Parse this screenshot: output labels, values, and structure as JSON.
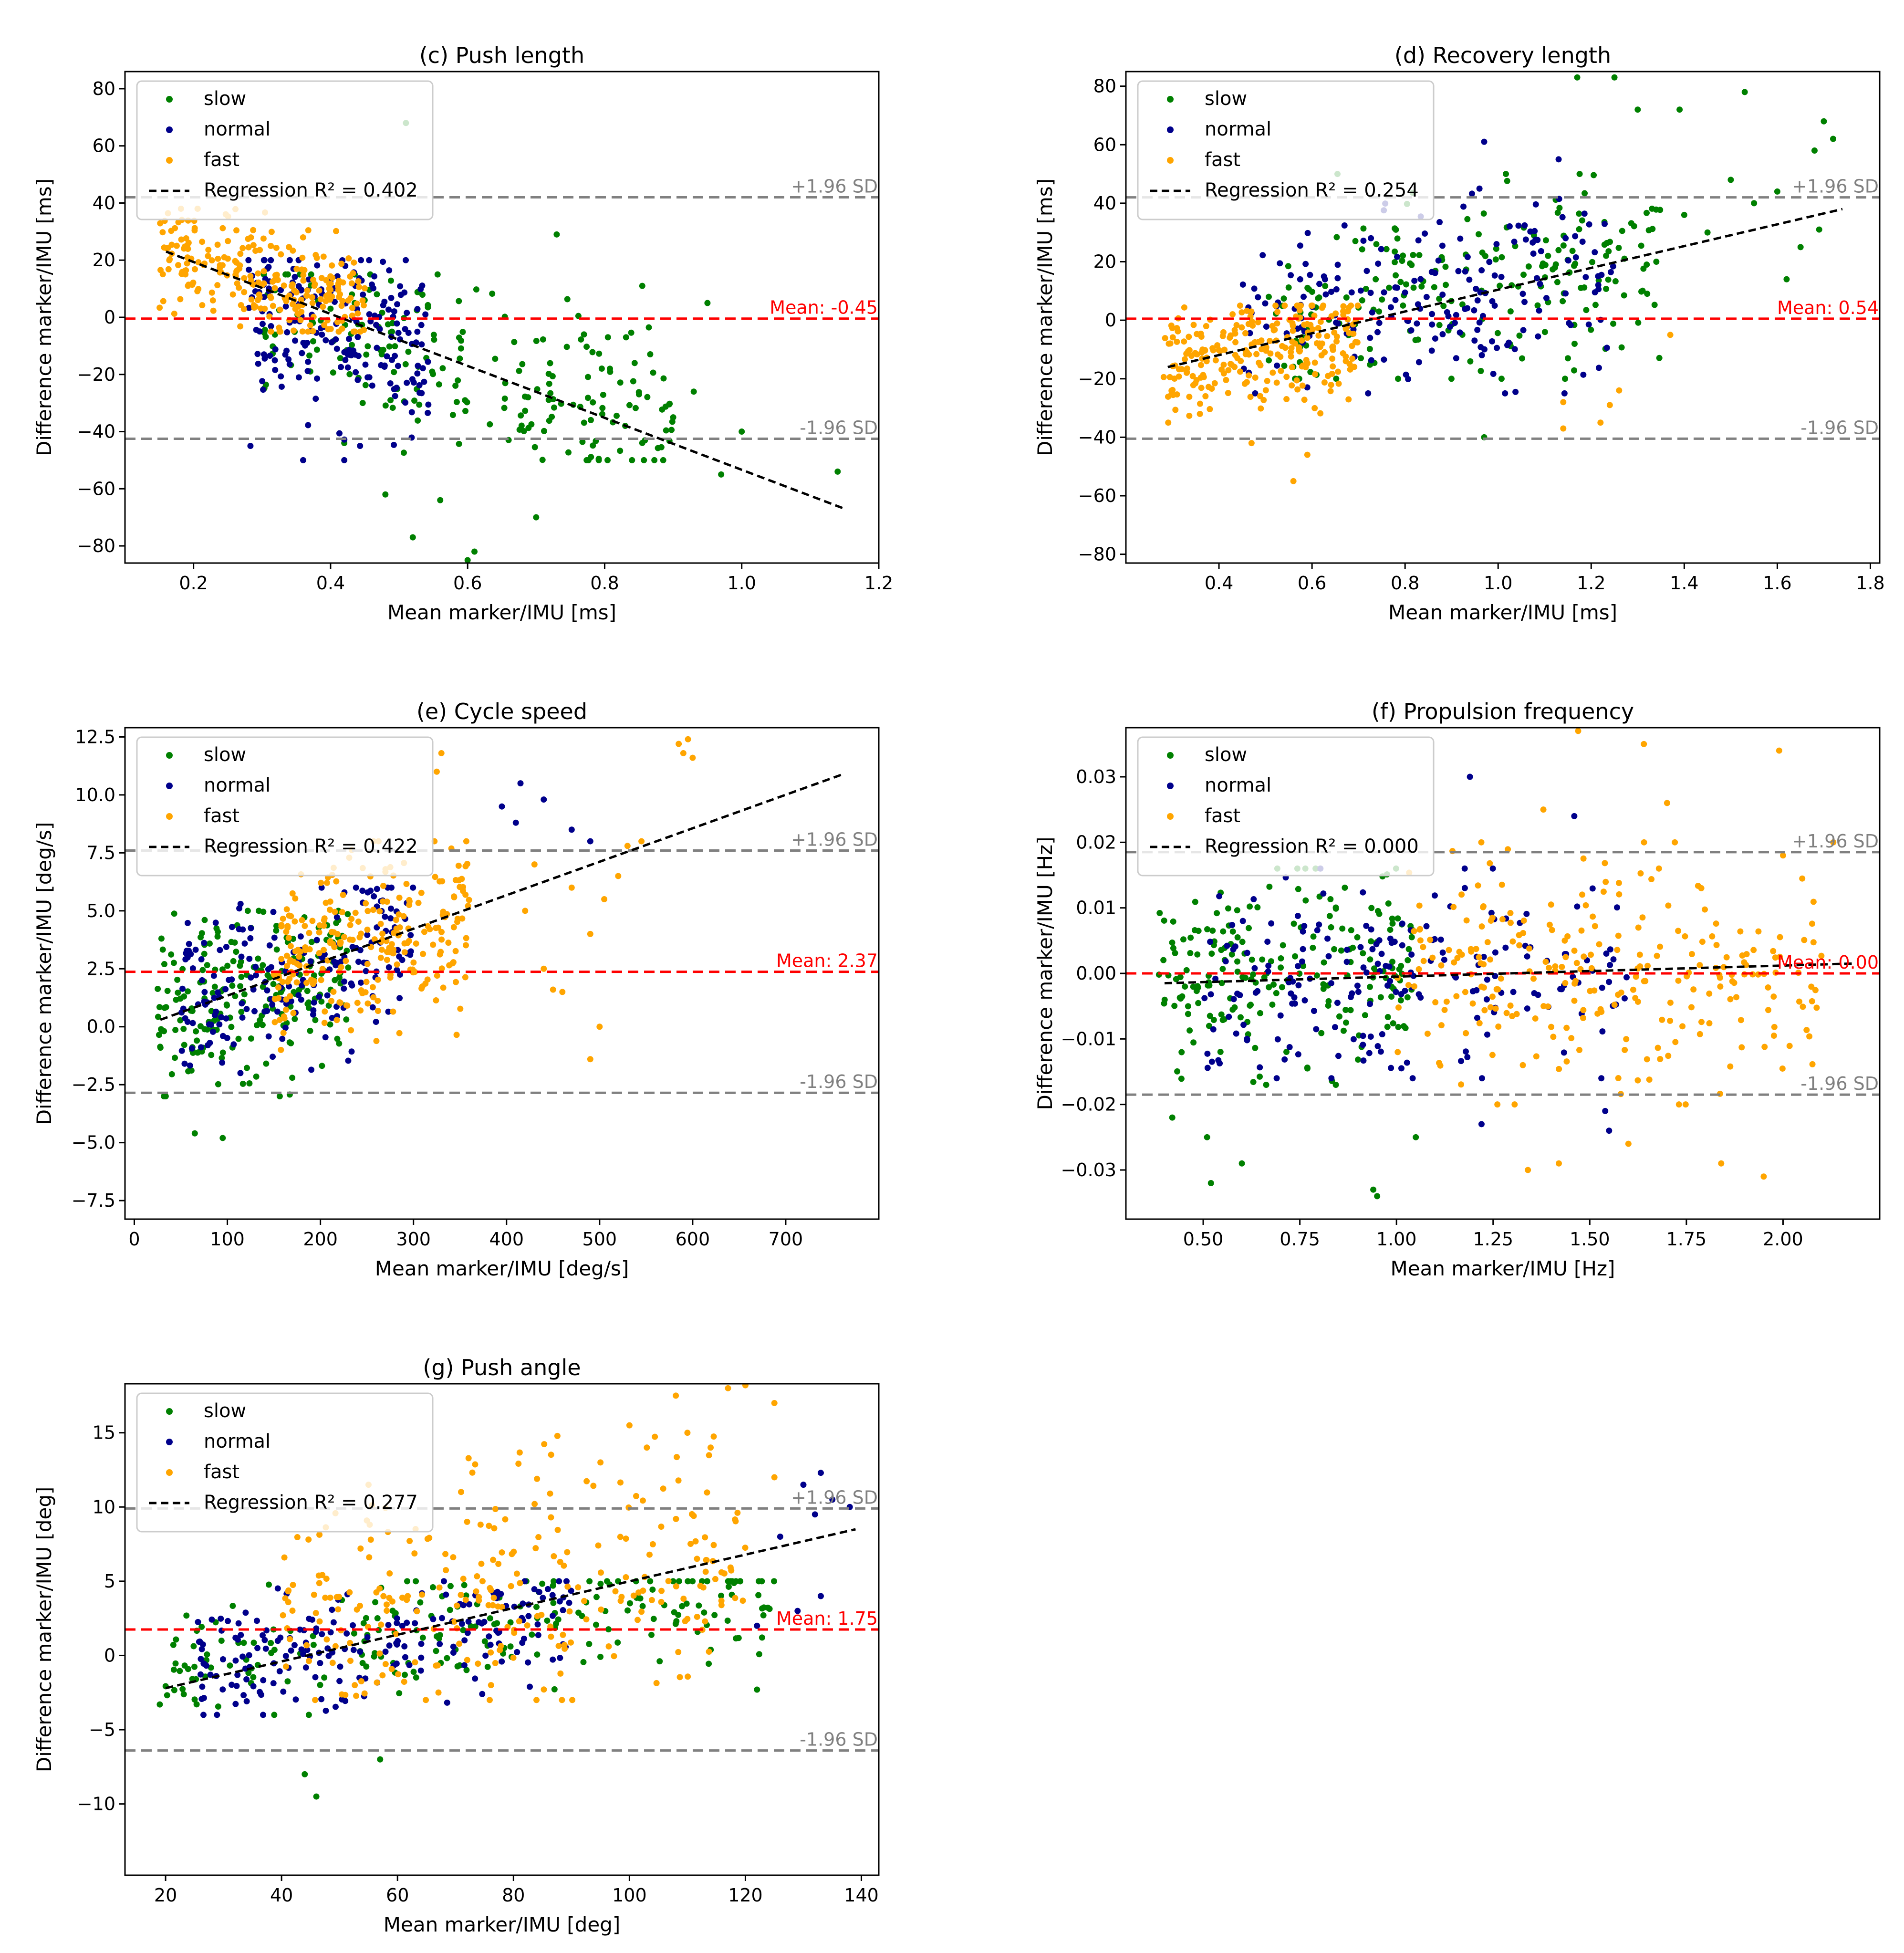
{
  "colors": {
    "slow": "#008000",
    "normal": "#00008b",
    "fast": "#ffa500",
    "mean": "#ff0000",
    "sd": "#808080",
    "regression": "#000000"
  },
  "chart_data": [
    {
      "id": "c",
      "type": "scatter",
      "title": "(c) Push length",
      "xlabel": "Mean marker/IMU [ms]",
      "ylabel": "Difference marker/IMU [ms]",
      "xlim": [
        0.1,
        1.2
      ],
      "ylim": [
        -86,
        86
      ],
      "xticks": [
        0.2,
        0.4,
        0.6,
        0.8,
        1.0,
        1.2
      ],
      "xtick_labels": [
        "0.2",
        "0.4",
        "0.6",
        "0.8",
        "1.0",
        "1.2"
      ],
      "yticks": [
        -80,
        -60,
        -40,
        -20,
        0,
        20,
        40,
        60,
        80
      ],
      "ytick_labels": [
        "−80",
        "−60",
        "−40",
        "−20",
        "0",
        "20",
        "40",
        "60",
        "80"
      ],
      "mean": -0.45,
      "mean_label": "Mean: -0.45",
      "upper_sd": 42,
      "upper_label": "+1.96 SD",
      "lower_sd": -42.5,
      "lower_label": "-1.96 SD",
      "regression": {
        "x": [
          0.16,
          1.15
        ],
        "y": [
          23,
          -67
        ],
        "label": "Regression R² = 0.402"
      },
      "legend": [
        "slow",
        "normal",
        "fast"
      ],
      "series": [
        {
          "name": "slow",
          "cluster": {
            "x": [
              0.3,
              0.9
            ],
            "y": [
              -50,
              15
            ]
          },
          "points": [
            [
              0.51,
              68
            ],
            [
              0.73,
              29
            ],
            [
              0.95,
              5
            ],
            [
              1.0,
              -40
            ],
            [
              0.93,
              -26
            ],
            [
              1.14,
              -54
            ],
            [
              0.97,
              -55
            ],
            [
              0.6,
              -85
            ],
            [
              0.52,
              -77
            ],
            [
              0.61,
              -82
            ],
            [
              0.7,
              -70
            ],
            [
              0.42,
              -44
            ],
            [
              0.48,
              -62
            ],
            [
              0.9,
              -35
            ],
            [
              0.56,
              -64
            ]
          ]
        },
        {
          "name": "normal",
          "cluster": {
            "x": [
              0.28,
              0.55
            ],
            "y": [
              -45,
              20
            ]
          },
          "points": [
            [
              0.36,
              -50
            ],
            [
              0.42,
              -50
            ]
          ]
        },
        {
          "name": "fast",
          "cluster": {
            "x": [
              0.15,
              0.45
            ],
            "y": [
              -5,
              38
            ]
          },
          "points": []
        }
      ]
    },
    {
      "id": "d",
      "type": "scatter",
      "title": "(d) Recovery length",
      "xlabel": "Mean marker/IMU [ms]",
      "ylabel": "Difference marker/IMU [ms]",
      "xlim": [
        0.2,
        1.82
      ],
      "ylim": [
        -83,
        85
      ],
      "xticks": [
        0.4,
        0.6,
        0.8,
        1.0,
        1.2,
        1.4,
        1.6,
        1.8
      ],
      "xtick_labels": [
        "0.4",
        "0.6",
        "0.8",
        "1.0",
        "1.2",
        "1.4",
        "1.6",
        "1.8"
      ],
      "yticks": [
        -80,
        -60,
        -40,
        -20,
        0,
        20,
        40,
        60,
        80
      ],
      "ytick_labels": [
        "−80",
        "−60",
        "−40",
        "−20",
        "0",
        "20",
        "40",
        "60",
        "80"
      ],
      "mean": 0.54,
      "mean_label": "Mean: 0.54",
      "upper_sd": 42,
      "upper_label": "+1.96 SD",
      "lower_sd": -40.5,
      "lower_label": "-1.96 SD",
      "regression": {
        "x": [
          0.29,
          1.74
        ],
        "y": [
          -16,
          38
        ],
        "label": "Regression R² = 0.254"
      },
      "legend": [
        "slow",
        "normal",
        "fast"
      ],
      "series": [
        {
          "name": "slow",
          "cluster": {
            "x": [
              0.5,
              1.35
            ],
            "y": [
              -20,
              50
            ]
          },
          "points": [
            [
              1.53,
              78
            ],
            [
              1.39,
              72
            ],
            [
              1.7,
              68
            ],
            [
              1.72,
              62
            ],
            [
              1.68,
              58
            ],
            [
              1.6,
              44
            ],
            [
              1.55,
              40
            ],
            [
              1.45,
              30
            ],
            [
              1.65,
              25
            ],
            [
              1.62,
              14
            ],
            [
              1.69,
              31
            ],
            [
              1.25,
              83
            ],
            [
              1.17,
              83
            ],
            [
              1.4,
              36
            ],
            [
              1.5,
              48
            ],
            [
              0.97,
              -40
            ],
            [
              1.3,
              72
            ],
            [
              1.34,
              20
            ]
          ]
        },
        {
          "name": "normal",
          "cluster": {
            "x": [
              0.45,
              1.25
            ],
            "y": [
              -25,
              45
            ]
          },
          "points": [
            [
              0.97,
              61
            ],
            [
              1.13,
              55
            ]
          ]
        },
        {
          "name": "fast",
          "cluster": {
            "x": [
              0.28,
              0.7
            ],
            "y": [
              -35,
              5
            ]
          },
          "points": [
            [
              0.56,
              -55
            ],
            [
              0.59,
              -46
            ],
            [
              1.14,
              -37
            ],
            [
              1.22,
              -35
            ],
            [
              1.24,
              -29
            ],
            [
              1.26,
              -24
            ],
            [
              1.37,
              -5
            ],
            [
              1.14,
              -28
            ],
            [
              0.47,
              -42
            ]
          ]
        }
      ]
    },
    {
      "id": "e",
      "type": "scatter",
      "title": "(e) Cycle speed",
      "xlabel": "Mean marker/IMU [deg/s]",
      "ylabel": "Difference marker/IMU [deg/s]",
      "xlim": [
        -10,
        800
      ],
      "ylim": [
        -8.3,
        12.9
      ],
      "xticks": [
        0,
        100,
        200,
        300,
        400,
        500,
        600,
        700
      ],
      "xtick_labels": [
        "0",
        "100",
        "200",
        "300",
        "400",
        "500",
        "600",
        "700"
      ],
      "yticks": [
        -7.5,
        -5.0,
        -2.5,
        0.0,
        2.5,
        5.0,
        7.5,
        10.0,
        12.5
      ],
      "ytick_labels": [
        "−7.5",
        "−5.0",
        "−2.5",
        "0.0",
        "2.5",
        "5.0",
        "7.5",
        "10.0",
        "12.5"
      ],
      "mean": 2.37,
      "mean_label": "Mean: 2.37",
      "upper_sd": 7.6,
      "upper_label": "+1.96 SD",
      "lower_sd": -2.85,
      "lower_label": "-1.96 SD",
      "regression": {
        "x": [
          28,
          762
        ],
        "y": [
          0.3,
          10.9
        ],
        "label": "Regression R² = 0.422"
      },
      "legend": [
        "slow",
        "normal",
        "fast"
      ],
      "series": [
        {
          "name": "slow",
          "cluster": {
            "x": [
              25,
              230
            ],
            "y": [
              -3,
              5
            ]
          },
          "points": [
            [
              65,
              -4.6
            ],
            [
              95,
              -4.8
            ]
          ]
        },
        {
          "name": "normal",
          "cluster": {
            "x": [
              50,
              300
            ],
            "y": [
              -2,
              6
            ]
          },
          "points": [
            [
              395,
              9.5
            ],
            [
              415,
              10.5
            ],
            [
              440,
              9.8
            ],
            [
              470,
              8.5
            ],
            [
              490,
              8.0
            ],
            [
              410,
              8.8
            ]
          ]
        },
        {
          "name": "fast",
          "cluster": {
            "x": [
              150,
              360
            ],
            "y": [
              -1,
              8
            ]
          },
          "points": [
            [
              595,
              12.4
            ],
            [
              585,
              12.2
            ],
            [
              600,
              11.6
            ],
            [
              590,
              11.8
            ],
            [
              545,
              8.0
            ],
            [
              530,
              7.8
            ],
            [
              520,
              6.5
            ],
            [
              505,
              5.5
            ],
            [
              490,
              4.0
            ],
            [
              500,
              0.0
            ],
            [
              490,
              -1.4
            ],
            [
              460,
              1.5
            ],
            [
              450,
              1.6
            ],
            [
              430,
              7.0
            ],
            [
              420,
              5.0
            ],
            [
              470,
              6.0
            ],
            [
              440,
              2.5
            ],
            [
              330,
              11.8
            ],
            [
              325,
              11.0
            ]
          ]
        }
      ]
    },
    {
      "id": "f",
      "type": "scatter",
      "title": "(f) Propulsion frequency",
      "xlabel": "Mean marker/IMU [Hz]",
      "ylabel": "Difference marker/IMU [Hz]",
      "xlim": [
        0.3,
        2.25
      ],
      "ylim": [
        -0.0375,
        0.0375
      ],
      "xticks": [
        0.5,
        0.75,
        1.0,
        1.25,
        1.5,
        1.75,
        2.0
      ],
      "xtick_labels": [
        "0.50",
        "0.75",
        "1.00",
        "1.25",
        "1.50",
        "1.75",
        "2.00"
      ],
      "yticks": [
        -0.03,
        -0.02,
        -0.01,
        0.0,
        0.01,
        0.02,
        0.03
      ],
      "ytick_labels": [
        "−0.03",
        "−0.02",
        "−0.01",
        "0.00",
        "0.01",
        "0.02",
        "0.03"
      ],
      "mean": 0.0,
      "mean_label": "Mean: 0.00",
      "upper_sd": 0.0185,
      "upper_label": "+1.96 SD",
      "lower_sd": -0.0185,
      "lower_label": "-1.96 SD",
      "regression": {
        "x": [
          0.4,
          2.18
        ],
        "y": [
          -0.0015,
          0.0015
        ],
        "label": "Regression R² = 0.000"
      },
      "legend": [
        "slow",
        "normal",
        "fast"
      ],
      "series": [
        {
          "name": "slow",
          "cluster": {
            "x": [
              0.38,
              1.05
            ],
            "y": [
              -0.017,
              0.016
            ]
          },
          "points": [
            [
              0.52,
              -0.032
            ],
            [
              0.6,
              -0.029
            ],
            [
              0.94,
              -0.033
            ],
            [
              0.95,
              -0.034
            ],
            [
              0.51,
              -0.025
            ],
            [
              1.05,
              -0.025
            ],
            [
              0.42,
              -0.022
            ]
          ]
        },
        {
          "name": "normal",
          "cluster": {
            "x": [
              0.5,
              1.6
            ],
            "y": [
              -0.016,
              0.016
            ]
          },
          "points": [
            [
              1.19,
              0.03
            ],
            [
              1.46,
              0.024
            ],
            [
              1.55,
              -0.024
            ],
            [
              1.54,
              -0.021
            ],
            [
              1.22,
              -0.023
            ]
          ]
        },
        {
          "name": "fast",
          "cluster": {
            "x": [
              1.0,
              2.1
            ],
            "y": [
              -0.02,
              0.02
            ]
          },
          "points": [
            [
              1.47,
              0.037
            ],
            [
              1.64,
              0.035
            ],
            [
              1.99,
              0.034
            ],
            [
              1.7,
              0.026
            ],
            [
              1.38,
              0.025
            ],
            [
              1.34,
              -0.03
            ],
            [
              1.42,
              -0.029
            ],
            [
              1.6,
              -0.026
            ],
            [
              1.84,
              -0.029
            ],
            [
              1.95,
              -0.031
            ],
            [
              2.0,
              0.018
            ],
            [
              2.13,
              0.02
            ]
          ]
        }
      ]
    },
    {
      "id": "g",
      "type": "scatter",
      "title": "(g) Push angle",
      "xlabel": "Mean marker/IMU [deg]",
      "ylabel": "Difference marker/IMU [deg]",
      "xlim": [
        13,
        143
      ],
      "ylim": [
        -14.8,
        18.3
      ],
      "xticks": [
        20,
        40,
        60,
        80,
        100,
        120,
        140
      ],
      "xtick_labels": [
        "20",
        "40",
        "60",
        "80",
        "100",
        "120",
        "140"
      ],
      "yticks": [
        -10,
        -5,
        0,
        5,
        10,
        15
      ],
      "ytick_labels": [
        "−10",
        "−5",
        "0",
        "5",
        "10",
        "15"
      ],
      "mean": 1.75,
      "mean_label": "Mean: 1.75",
      "upper_sd": 9.9,
      "upper_label": "+1.96 SD",
      "lower_sd": -6.4,
      "lower_label": "-1.96 SD",
      "regression": {
        "x": [
          20,
          139
        ],
        "y": [
          -2.2,
          8.5
        ],
        "label": "Regression R² = 0.277"
      },
      "legend": [
        "slow",
        "normal",
        "fast"
      ],
      "series": [
        {
          "name": "slow",
          "cluster": {
            "x": [
              20,
              125
            ],
            "y": [
              -4,
              5
            ]
          },
          "points": [
            [
              44,
              -8.0
            ],
            [
              46,
              -9.5
            ],
            [
              57,
              -7.0
            ],
            [
              19,
              -3.3
            ],
            [
              122,
              -2.3
            ]
          ]
        },
        {
          "name": "normal",
          "cluster": {
            "x": [
              25,
              90
            ],
            "y": [
              -4,
              5
            ]
          },
          "points": [
            [
              130,
              11.5
            ],
            [
              133,
              12.3
            ],
            [
              135,
              10.5
            ],
            [
              132,
              9.5
            ],
            [
              138,
              10.0
            ],
            [
              126,
              8.0
            ],
            [
              133,
              4.0
            ],
            [
              129,
              3.0
            ],
            [
              122,
              2.0
            ]
          ]
        },
        {
          "name": "fast",
          "cluster": {
            "x": [
              40,
              120
            ],
            "y": [
              -3,
              15
            ]
          },
          "points": [
            [
              108,
              17.5
            ],
            [
              117,
              18.0
            ],
            [
              120,
              18.2
            ],
            [
              125,
              17.0
            ],
            [
              100,
              15.5
            ],
            [
              110,
              15.0
            ],
            [
              95,
              13.0
            ],
            [
              103,
              14.0
            ],
            [
              114,
              14.0
            ],
            [
              55,
              11.5
            ],
            [
              72,
              9.0
            ],
            [
              125,
              12.0
            ]
          ]
        }
      ]
    }
  ]
}
